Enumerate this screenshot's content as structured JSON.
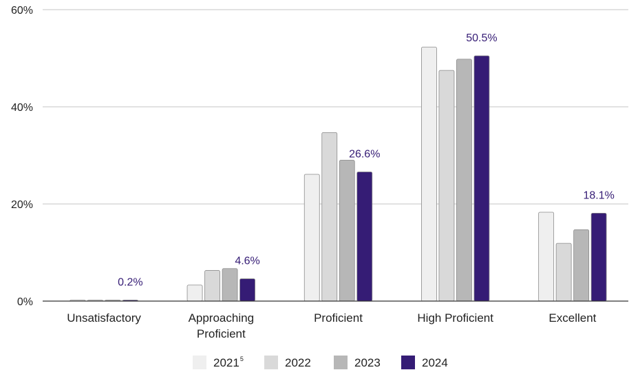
{
  "chart_data": {
    "type": "bar",
    "categories": [
      [
        "Unsatisfactory"
      ],
      [
        "Approaching",
        "Proficient"
      ],
      [
        "Proficient"
      ],
      [
        "High Proficient"
      ],
      [
        "Excellent"
      ]
    ],
    "series": [
      {
        "name": "2021",
        "name_sup": "5",
        "color": "#efefef",
        "values": [
          0.1,
          3.3,
          26.1,
          52.3,
          18.3
        ]
      },
      {
        "name": "2022",
        "color": "#d9d9d9",
        "values": [
          0.1,
          6.3,
          34.7,
          47.5,
          11.9
        ]
      },
      {
        "name": "2023",
        "color": "#b7b7b7",
        "values": [
          0.1,
          6.7,
          29.0,
          49.8,
          14.7
        ]
      },
      {
        "name": "2024",
        "color": "#351c75",
        "values": [
          0.2,
          4.6,
          26.6,
          50.5,
          18.1
        ]
      }
    ],
    "data_labels": {
      "series": "2024",
      "color": "#351c75",
      "texts": [
        "0.2%",
        "4.6%",
        "26.6%",
        "50.5%",
        "18.1%"
      ]
    },
    "y_ticks": [
      {
        "value": 0,
        "label": "0%"
      },
      {
        "value": 20,
        "label": "20%"
      },
      {
        "value": 40,
        "label": "40%"
      },
      {
        "value": 60,
        "label": "60%"
      }
    ],
    "ylim": [
      0,
      60
    ],
    "grid": true,
    "legend_position": "bottom-center",
    "title": "",
    "xlabel": "",
    "ylabel": ""
  }
}
